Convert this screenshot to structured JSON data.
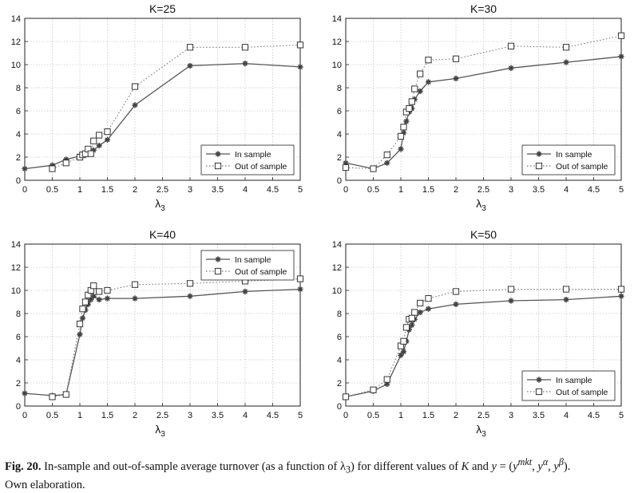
{
  "chart_data": [
    {
      "type": "line",
      "title": "K=25",
      "xlabel": "λ3",
      "ylabel": "",
      "xlim": [
        0,
        5
      ],
      "ylim": [
        0,
        14
      ],
      "xticks": [
        "0",
        "0.5",
        "1",
        "1.5",
        "2",
        "2.5",
        "3",
        "3.5",
        "4",
        "4.5",
        "5"
      ],
      "yticks": [
        "0",
        "2",
        "4",
        "6",
        "8",
        "10",
        "12",
        "14"
      ],
      "legend_position": "bottom-right",
      "series": [
        {
          "name": "In sample",
          "style": "solid-star",
          "x": [
            0,
            0.5,
            0.75,
            1,
            1.05,
            1.1,
            1.15,
            1.2,
            1.25,
            1.35,
            1.5,
            2,
            3,
            4,
            5
          ],
          "y": [
            1.0,
            1.3,
            1.8,
            2.1,
            2.2,
            2.3,
            2.3,
            2.4,
            2.6,
            3.0,
            3.5,
            6.5,
            9.9,
            10.1,
            9.8
          ]
        },
        {
          "name": "Out of sample",
          "style": "dotted-square",
          "x": [
            0.5,
            0.75,
            1,
            1.05,
            1.1,
            1.15,
            1.2,
            1.25,
            1.35,
            1.5,
            2,
            3,
            4,
            5
          ],
          "y": [
            1.0,
            1.5,
            2.0,
            2.2,
            2.3,
            2.7,
            2.3,
            3.4,
            3.9,
            4.2,
            8.1,
            11.5,
            11.5,
            11.7
          ]
        }
      ]
    },
    {
      "type": "line",
      "title": "K=30",
      "xlabel": "λ3",
      "ylabel": "",
      "xlim": [
        0,
        5
      ],
      "ylim": [
        0,
        14
      ],
      "xticks": [
        "0",
        "0.5",
        "1",
        "1.5",
        "2",
        "2.5",
        "3",
        "3.5",
        "4",
        "4.5",
        "5"
      ],
      "yticks": [
        "0",
        "2",
        "4",
        "6",
        "8",
        "10",
        "12",
        "14"
      ],
      "legend_position": "bottom-right",
      "series": [
        {
          "name": "In sample",
          "style": "solid-star",
          "x": [
            0,
            0.5,
            0.75,
            1,
            1.05,
            1.1,
            1.15,
            1.2,
            1.25,
            1.35,
            1.5,
            2,
            3,
            4,
            5
          ],
          "y": [
            1.5,
            1.0,
            1.5,
            2.7,
            4.1,
            5.1,
            5.9,
            6.2,
            7.0,
            7.7,
            8.5,
            8.8,
            9.7,
            10.2,
            10.7
          ]
        },
        {
          "name": "Out of sample",
          "style": "dotted-square",
          "x": [
            0,
            0.5,
            0.75,
            1,
            1.05,
            1.1,
            1.15,
            1.2,
            1.25,
            1.35,
            1.5,
            2,
            3,
            4,
            5
          ],
          "y": [
            1.1,
            1.0,
            2.2,
            3.8,
            4.6,
            5.9,
            6.2,
            6.8,
            7.9,
            9.2,
            10.4,
            10.5,
            11.6,
            11.5,
            12.5
          ]
        }
      ]
    },
    {
      "type": "line",
      "title": "K=40",
      "xlabel": "λ3",
      "ylabel": "",
      "xlim": [
        0,
        5
      ],
      "ylim": [
        0,
        14
      ],
      "xticks": [
        "0",
        "0.5",
        "1",
        "1.5",
        "2",
        "2.5",
        "3",
        "3.5",
        "4",
        "4.5",
        "5"
      ],
      "yticks": [
        "0",
        "2",
        "4",
        "6",
        "8",
        "10",
        "12",
        "14"
      ],
      "legend_position": "top-right",
      "series": [
        {
          "name": "In sample",
          "style": "solid-star",
          "x": [
            0,
            0.5,
            0.75,
            1,
            1.05,
            1.1,
            1.15,
            1.2,
            1.25,
            1.35,
            1.5,
            2,
            3,
            4,
            5
          ],
          "y": [
            1.1,
            0.9,
            1.0,
            6.2,
            7.6,
            8.3,
            8.8,
            9.2,
            9.5,
            9.2,
            9.3,
            9.3,
            9.5,
            9.9,
            10.1
          ]
        },
        {
          "name": "Out of sample",
          "style": "dotted-square",
          "x": [
            0.5,
            0.75,
            1,
            1.05,
            1.1,
            1.15,
            1.2,
            1.25,
            1.35,
            1.5,
            2,
            3,
            4,
            5
          ],
          "y": [
            0.8,
            1.0,
            7.1,
            8.4,
            9.0,
            9.6,
            10.0,
            10.4,
            9.9,
            10.0,
            10.5,
            10.6,
            10.8,
            11.0
          ]
        }
      ]
    },
    {
      "type": "line",
      "title": "K=50",
      "xlabel": "λ3",
      "ylabel": "",
      "xlim": [
        0,
        5
      ],
      "ylim": [
        0,
        14
      ],
      "xticks": [
        "0",
        "0.5",
        "1",
        "1.5",
        "2",
        "2.5",
        "3",
        "3.5",
        "4",
        "4.5",
        "5"
      ],
      "yticks": [
        "0",
        "2",
        "4",
        "6",
        "8",
        "10",
        "12",
        "14"
      ],
      "legend_position": "bottom-right",
      "series": [
        {
          "name": "In sample",
          "style": "solid-star",
          "x": [
            0,
            0.5,
            0.75,
            1,
            1.05,
            1.1,
            1.15,
            1.2,
            1.25,
            1.35,
            1.5,
            2,
            3,
            4,
            5
          ],
          "y": [
            0.8,
            1.3,
            1.9,
            4.4,
            4.7,
            5.6,
            6.6,
            7.0,
            7.5,
            8.1,
            8.4,
            8.8,
            9.1,
            9.2,
            9.5
          ]
        },
        {
          "name": "Out of sample",
          "style": "dotted-square",
          "x": [
            0,
            0.5,
            0.75,
            1,
            1.05,
            1.1,
            1.15,
            1.2,
            1.25,
            1.35,
            1.5,
            2,
            3,
            4,
            5
          ],
          "y": [
            0.8,
            1.4,
            2.3,
            5.2,
            5.6,
            6.8,
            7.5,
            7.6,
            8.1,
            8.9,
            9.3,
            9.9,
            10.1,
            10.1,
            10.1
          ]
        }
      ]
    }
  ],
  "caption": {
    "label": "Fig. 20.",
    "text_1": "In-sample and out-of-sample average turnover (as a function of λ",
    "sub_3": "3",
    "text_2": ") for different values of",
    "k": "K",
    "text_3": "and",
    "y": "y",
    "text_4": "= (",
    "y_mkt": "y",
    "sup_mkt": "mkt",
    "sep_1": ",",
    "y_alpha": "y",
    "sup_alpha": "α",
    "sep_2": ",",
    "y_beta": "y",
    "sup_beta": "β",
    "text_5": ").",
    "line_2": "Own elaboration."
  }
}
